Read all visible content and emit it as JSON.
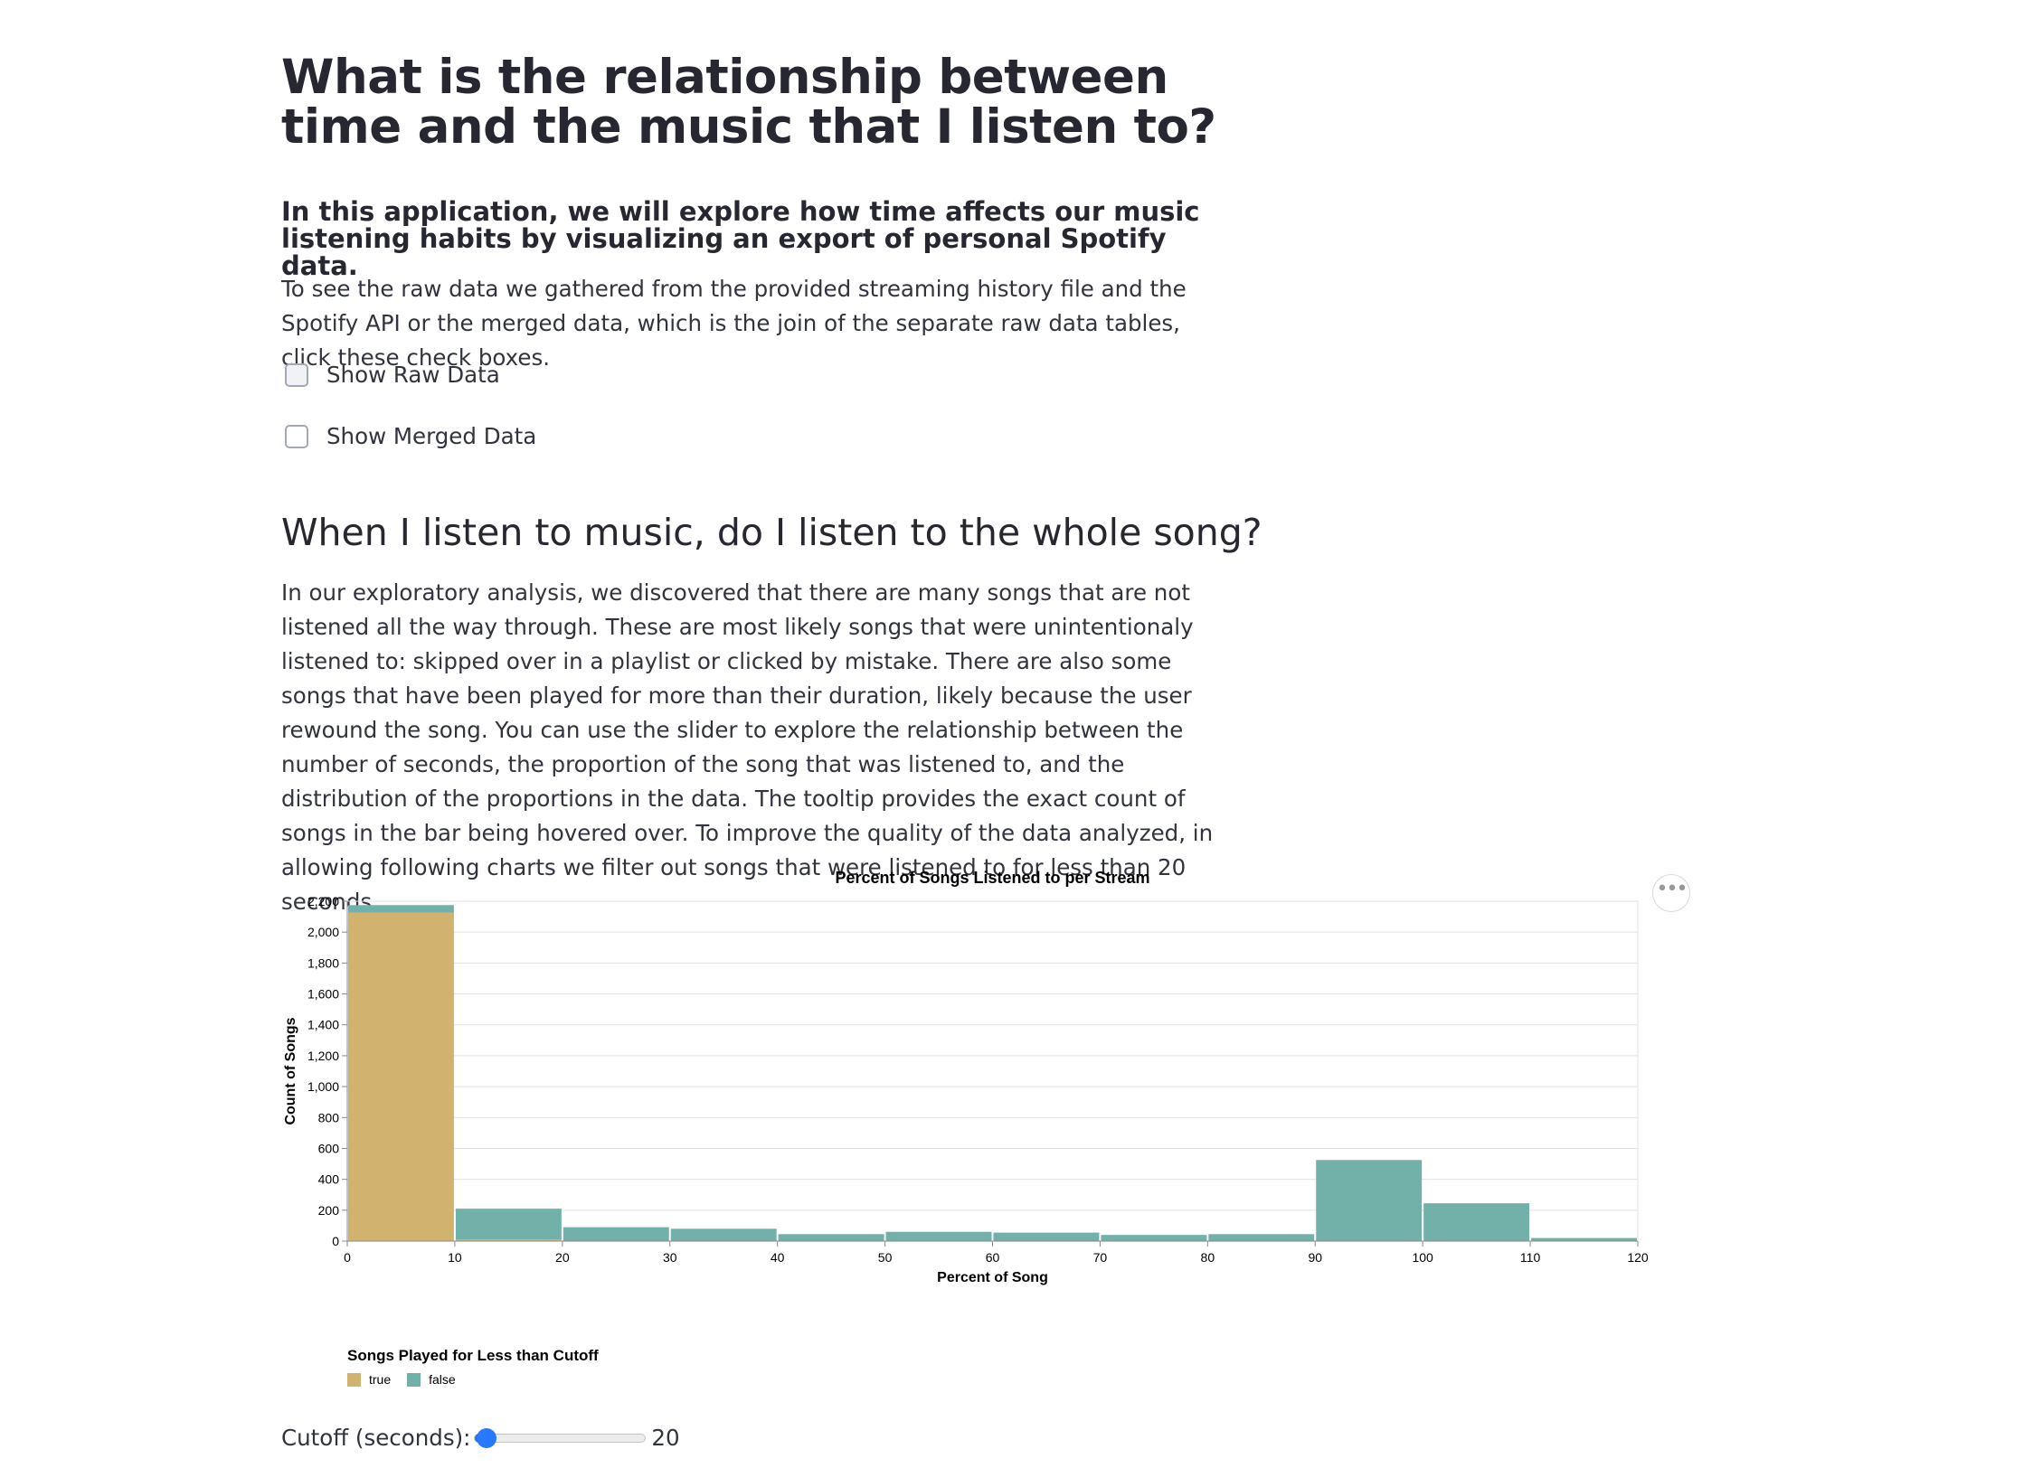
{
  "header": {
    "title": "What is the relationship between time and the music that I listen to?",
    "subtitle": "In this application, we will explore how time affects our music listening habits by visualizing an export of personal Spotify data.",
    "intro": "To see the raw data we gathered from the provided streaming history file and the Spotify API or the merged data, which is the join of the separate raw data tables, click these check boxes."
  },
  "checkboxes": [
    {
      "label": "Show Raw Data",
      "checked": false
    },
    {
      "label": "Show Merged Data",
      "checked": false
    }
  ],
  "section": {
    "heading": "When I listen to music, do I listen to the whole song?",
    "body": "In our exploratory analysis, we discovered that there are many songs that are not listened all the way through. These are most likely songs that were unintentionaly listened to: skipped over in a playlist or clicked by mistake. There are also some songs that have been played for more than their duration, likely because the user rewound the song. You can use the slider to explore the relationship between the number of seconds, the proportion of the song that was listened to, and the distribution of the proportions in the data. The tooltip provides the exact count of songs in the bar being hovered over. To improve the quality of the data analyzed, in allowing following charts we filter out songs that were listened to for less than 20 seconds."
  },
  "chart_menu_icon": "ellipsis-icon",
  "colors": {
    "true": "#d1b26f",
    "false": "#71b1a9",
    "slider": "#2979ff"
  },
  "chart_data": {
    "type": "bar",
    "stacked": true,
    "title": "Percent of Songs Listened to per Stream",
    "xlabel": "Percent of Song",
    "ylabel": "Count of Songs",
    "bins": [
      [
        0,
        10
      ],
      [
        10,
        20
      ],
      [
        20,
        30
      ],
      [
        30,
        40
      ],
      [
        40,
        50
      ],
      [
        50,
        60
      ],
      [
        60,
        70
      ],
      [
        70,
        80
      ],
      [
        80,
        90
      ],
      [
        90,
        100
      ],
      [
        100,
        110
      ],
      [
        110,
        120
      ]
    ],
    "series": [
      {
        "name": "true",
        "color": "#d1b26f",
        "values": [
          2125,
          10,
          0,
          0,
          0,
          0,
          0,
          0,
          0,
          0,
          0,
          0
        ]
      },
      {
        "name": "false",
        "color": "#71b1a9",
        "values": [
          50,
          200,
          90,
          80,
          45,
          60,
          55,
          40,
          45,
          525,
          245,
          20
        ]
      }
    ],
    "xlim": [
      0,
      120
    ],
    "ylim": [
      0,
      2200
    ],
    "xticks": [
      0,
      10,
      20,
      30,
      40,
      50,
      60,
      70,
      80,
      90,
      100,
      110,
      120
    ],
    "yticks": [
      0,
      200,
      400,
      600,
      800,
      1000,
      1200,
      1400,
      1600,
      1800,
      2000,
      2200
    ],
    "ytick_labels": [
      "0",
      "200",
      "400",
      "600",
      "800",
      "1,000",
      "1,200",
      "1,400",
      "1,600",
      "1,800",
      "2,000",
      "2,200"
    ],
    "grid": true,
    "legend_title": "Songs Played for Less than Cutoff",
    "legend_placement": "bottom-left"
  },
  "slider": {
    "label": "Cutoff (seconds):",
    "value": 20,
    "min": 0,
    "max": 300
  }
}
